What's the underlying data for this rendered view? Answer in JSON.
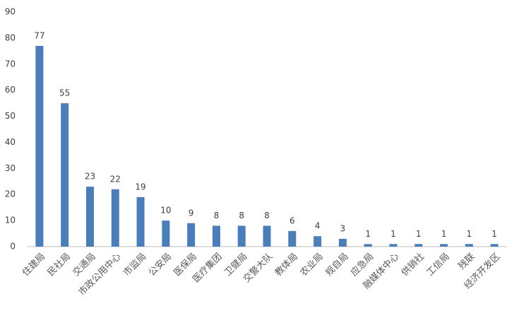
{
  "chart_data": {
    "type": "bar",
    "categories": [
      "住建局",
      "民社局",
      "交通局",
      "市政公用中心",
      "市监局",
      "公安局",
      "医保局",
      "医疗集团",
      "卫健局",
      "交警大队",
      "教体局",
      "农业局",
      "规自局",
      "应急局",
      "融媒体中心",
      "供销社",
      "工信局",
      "残联",
      "经济开发区"
    ],
    "values": [
      77,
      55,
      23,
      22,
      19,
      10,
      9,
      8,
      8,
      8,
      6,
      4,
      3,
      1,
      1,
      1,
      1,
      1,
      1
    ],
    "color": "#4a7ebb",
    "ylim": [
      0,
      90
    ],
    "yticks": [
      0,
      10,
      20,
      30,
      40,
      50,
      60,
      70,
      80,
      90
    ],
    "grid": false
  }
}
